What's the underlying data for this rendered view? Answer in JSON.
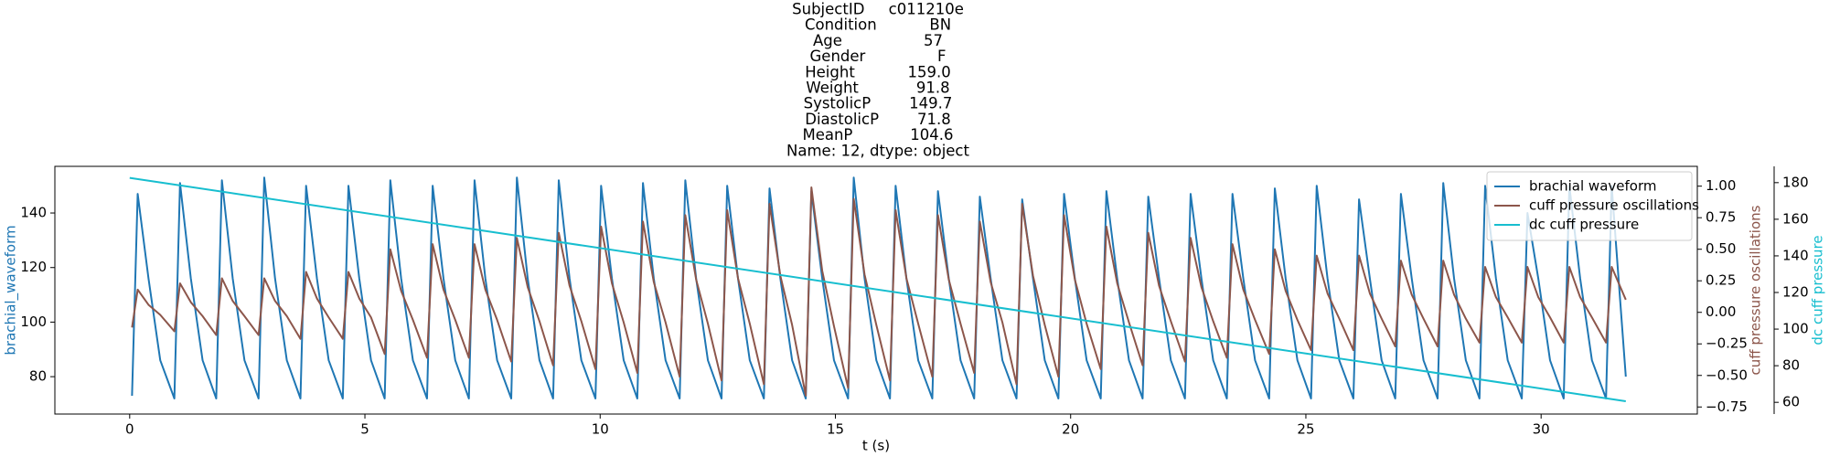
{
  "chart_data": {
    "type": "line",
    "title": [
      "SubjectID     c011210e",
      "Condition           BN",
      "Age                 57",
      "Gender               F",
      "Height           159.0",
      "Weight            91.8",
      "SystolicP        149.7",
      "DiastolicP        71.8",
      "MeanP            104.6",
      "Name: 12, dtype: object"
    ],
    "xlabel": "t (s)",
    "ylabel": "brachial_waveform",
    "y2label": "cuff pressure oscillations",
    "y3label": "dc cuff pressure",
    "legend": "upper right",
    "xlim": [
      -1.59,
      33.32
    ],
    "xticks": [
      0,
      5,
      10,
      15,
      20,
      25,
      30
    ],
    "ylim": [
      66.3,
      157.1
    ],
    "yticks": [
      80,
      100,
      120,
      140
    ],
    "y2lim": [
      -0.806,
      1.157
    ],
    "y2ticks": [
      {
        "value": -0.75,
        "label": "−0.75"
      },
      {
        "value": -0.5,
        "label": "−0.50"
      },
      {
        "value": -0.25,
        "label": "−0.25"
      },
      {
        "value": 0,
        "label": "0.00"
      },
      {
        "value": 0.25,
        "label": "0.25"
      },
      {
        "value": 0.5,
        "label": "0.50"
      },
      {
        "value": 0.75,
        "label": "0.75"
      },
      {
        "value": 1,
        "label": "1.00"
      }
    ],
    "y3lim": [
      53.6,
      188.9
    ],
    "y3ticks": [
      60,
      80,
      100,
      120,
      140,
      160,
      180
    ],
    "x": [
      0.05,
      0.17,
      0.4,
      0.65,
      0.95,
      1.07,
      1.3,
      1.55,
      1.84,
      1.96,
      2.19,
      2.44,
      2.74,
      2.86,
      3.09,
      3.34,
      3.63,
      3.75,
      3.98,
      4.23,
      4.53,
      4.65,
      4.88,
      5.13,
      5.42,
      5.54,
      5.77,
      6.02,
      6.32,
      6.44,
      6.67,
      6.92,
      7.21,
      7.33,
      7.56,
      7.81,
      8.11,
      8.23,
      8.46,
      8.71,
      9.0,
      9.12,
      9.35,
      9.6,
      9.9,
      10.02,
      10.25,
      10.5,
      10.79,
      10.91,
      11.14,
      11.39,
      11.69,
      11.81,
      12.04,
      12.29,
      12.58,
      12.7,
      12.93,
      13.18,
      13.48,
      13.6,
      13.83,
      14.08,
      14.37,
      14.49,
      14.72,
      14.97,
      15.27,
      15.39,
      15.62,
      15.87,
      16.16,
      16.28,
      16.51,
      16.76,
      17.06,
      17.18,
      17.41,
      17.66,
      17.95,
      18.07,
      18.3,
      18.55,
      18.85,
      18.97,
      19.2,
      19.45,
      19.74,
      19.86,
      20.09,
      20.34,
      20.64,
      20.76,
      20.99,
      21.24,
      21.53,
      21.65,
      21.88,
      22.13,
      22.43,
      22.55,
      22.78,
      23.03,
      23.32,
      23.44,
      23.67,
      23.92,
      24.22,
      24.34,
      24.57,
      24.82,
      25.11,
      25.23,
      25.46,
      25.71,
      26.01,
      26.13,
      26.36,
      26.61,
      26.9,
      27.02,
      27.25,
      27.5,
      27.8,
      27.92,
      28.15,
      28.4,
      28.69,
      28.81,
      29.04,
      29.29,
      29.59,
      29.71,
      29.94,
      30.19,
      30.48,
      30.6,
      30.83,
      31.08,
      31.38,
      31.5,
      31.8
    ],
    "series": [
      {
        "name": "brachial waveform",
        "color": "#1f77b4",
        "axis": "y",
        "values": [
          73,
          147,
          116,
          86,
          72,
          151,
          116,
          86,
          72,
          152,
          116,
          86,
          72,
          153,
          116,
          86,
          72,
          150,
          116,
          86,
          72,
          150,
          116,
          86,
          72,
          152,
          116,
          86,
          72,
          150,
          116,
          86,
          72,
          152,
          116,
          86,
          72,
          153,
          116,
          86,
          72,
          152,
          116,
          86,
          72,
          150,
          116,
          86,
          72,
          151,
          116,
          86,
          72,
          152,
          116,
          86,
          72,
          150,
          116,
          86,
          72,
          149,
          116,
          86,
          72,
          148,
          116,
          86,
          72,
          153,
          116,
          86,
          72,
          150,
          116,
          86,
          72,
          148,
          116,
          86,
          72,
          146,
          116,
          86,
          72,
          145,
          116,
          86,
          72,
          147,
          116,
          86,
          72,
          148,
          116,
          86,
          72,
          146,
          116,
          86,
          72,
          147,
          116,
          86,
          72,
          147,
          116,
          86,
          72,
          149,
          116,
          86,
          72,
          150,
          116,
          86,
          72,
          145,
          116,
          86,
          72,
          147,
          116,
          86,
          72,
          151,
          116,
          86,
          72,
          150,
          116,
          86,
          72,
          140,
          116,
          86,
          72,
          150,
          116,
          86,
          72,
          150,
          80
        ]
      },
      {
        "name": "cuff pressure oscillations",
        "color": "#8c564b",
        "axis": "y2",
        "values": [
          -0.12,
          0.18,
          0.06,
          -0.02,
          -0.15,
          0.23,
          0.08,
          -0.03,
          -0.18,
          0.27,
          0.09,
          -0.03,
          -0.18,
          0.27,
          0.09,
          -0.03,
          -0.21,
          0.32,
          0.11,
          -0.04,
          -0.21,
          0.32,
          0.11,
          -0.04,
          -0.33,
          0.5,
          0.17,
          -0.06,
          -0.36,
          0.54,
          0.18,
          -0.06,
          -0.36,
          0.54,
          0.18,
          -0.06,
          -0.39,
          0.59,
          0.2,
          -0.07,
          -0.42,
          0.63,
          0.21,
          -0.07,
          -0.45,
          0.68,
          0.23,
          -0.08,
          -0.48,
          0.72,
          0.24,
          -0.08,
          -0.51,
          0.77,
          0.26,
          -0.09,
          -0.54,
          0.81,
          0.27,
          -0.09,
          -0.57,
          0.86,
          0.29,
          -0.1,
          -0.66,
          0.99,
          0.33,
          -0.11,
          -0.6,
          0.9,
          0.3,
          -0.1,
          -0.54,
          0.81,
          0.27,
          -0.09,
          -0.51,
          0.77,
          0.26,
          -0.09,
          -0.48,
          0.72,
          0.24,
          -0.08,
          -0.57,
          0.86,
          0.29,
          -0.1,
          -0.51,
          0.77,
          0.26,
          -0.09,
          -0.45,
          0.68,
          0.23,
          -0.08,
          -0.42,
          0.63,
          0.21,
          -0.07,
          -0.39,
          0.59,
          0.2,
          -0.07,
          -0.36,
          0.54,
          0.18,
          -0.06,
          -0.33,
          0.5,
          0.17,
          -0.06,
          -0.3,
          0.45,
          0.15,
          -0.05,
          -0.3,
          0.45,
          0.15,
          -0.05,
          -0.27,
          0.41,
          0.14,
          -0.05,
          -0.27,
          0.41,
          0.14,
          -0.05,
          -0.24,
          0.36,
          0.12,
          -0.04,
          -0.24,
          0.36,
          0.12,
          -0.04,
          -0.24,
          0.36,
          0.12,
          -0.04,
          -0.24,
          0.36,
          0.1
        ]
      },
      {
        "name": "dc cuff pressure",
        "color": "#17becf",
        "axis": "y3",
        "x": [
          0,
          31.8
        ],
        "values": [
          182.6,
          60.6
        ]
      }
    ]
  }
}
